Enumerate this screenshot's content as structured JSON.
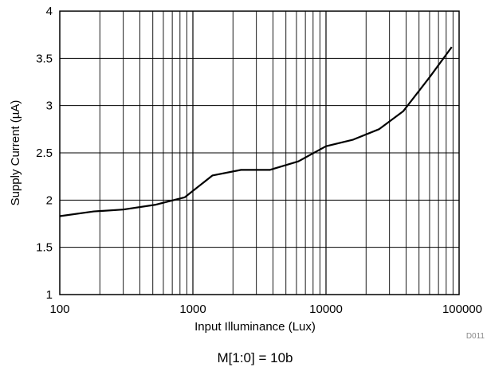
{
  "chart_data": {
    "type": "line",
    "xlabel": "Input Illuminance (Lux)",
    "ylabel": "Supply Current (µA)",
    "x_scale": "log",
    "xlim": [
      100,
      100000
    ],
    "ylim": [
      1,
      4
    ],
    "x_ticks": [
      100,
      1000,
      10000,
      100000
    ],
    "x_tick_labels": [
      "100",
      "1000",
      "10000",
      "100000"
    ],
    "y_ticks": [
      1,
      1.5,
      2,
      2.5,
      3,
      3.5,
      4
    ],
    "y_tick_labels": [
      "1",
      "1.5",
      "2",
      "2.5",
      "3",
      "3.5",
      "4"
    ],
    "grid": true,
    "series": [
      {
        "x": [
          100,
          180,
          300,
          520,
          870,
          1400,
          2300,
          3800,
          6200,
          10000,
          16000,
          25000,
          38000,
          60000,
          88000
        ],
        "y": [
          1.83,
          1.88,
          1.9,
          1.95,
          2.03,
          2.26,
          2.32,
          2.32,
          2.41,
          2.57,
          2.64,
          2.75,
          2.94,
          3.3,
          3.62
        ]
      }
    ],
    "colors": {
      "line": "#000000",
      "grid": "#000000"
    }
  },
  "figure_code": "D011",
  "caption": "M[1:0] = 10b"
}
